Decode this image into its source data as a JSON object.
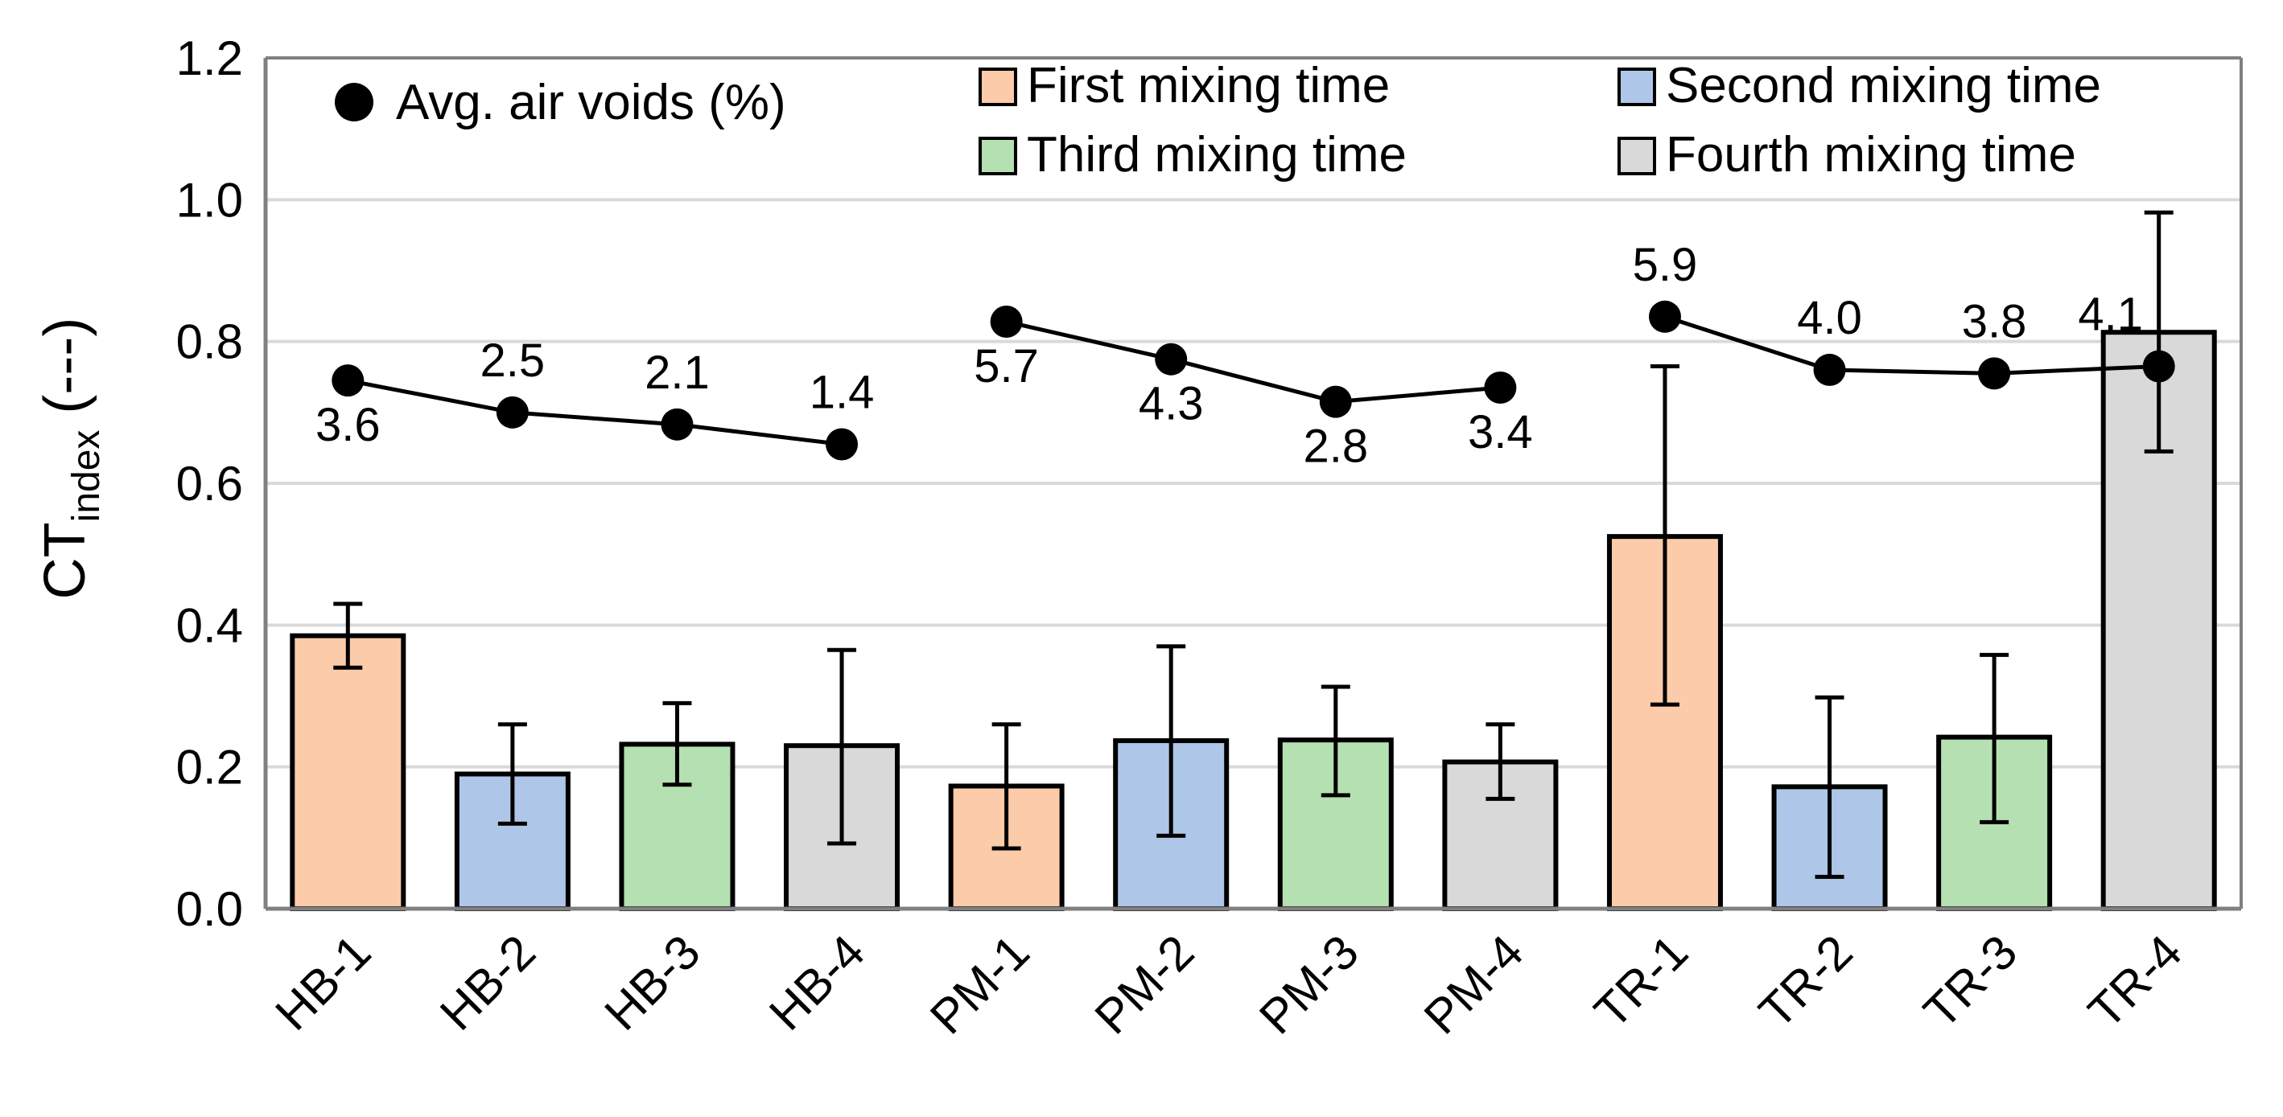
{
  "chart_data": {
    "type": "bar",
    "categories": [
      "HB-1",
      "HB-2",
      "HB-3",
      "HB-4",
      "PM-1",
      "PM-2",
      "PM-3",
      "PM-4",
      "TR-1",
      "TR-2",
      "TR-3",
      "TR-4"
    ],
    "ylabel_main": "CT",
    "ylabel_sub": "index",
    "ylabel_suffix": " (---)",
    "ylim": [
      0,
      1.2
    ],
    "yticks": [
      "0.0",
      "0.2",
      "0.4",
      "0.6",
      "0.8",
      "1.0",
      "1.2"
    ],
    "grid": true,
    "bars": [
      {
        "value": 0.385,
        "err_low": 0.34,
        "err_high": 0.43,
        "group": 0
      },
      {
        "value": 0.19,
        "err_low": 0.12,
        "err_high": 0.26,
        "group": 1
      },
      {
        "value": 0.232,
        "err_low": 0.175,
        "err_high": 0.29,
        "group": 2
      },
      {
        "value": 0.23,
        "err_low": 0.092,
        "err_high": 0.365,
        "group": 3
      },
      {
        "value": 0.173,
        "err_low": 0.085,
        "err_high": 0.26,
        "group": 0
      },
      {
        "value": 0.237,
        "err_low": 0.103,
        "err_high": 0.37,
        "group": 1
      },
      {
        "value": 0.238,
        "err_low": 0.16,
        "err_high": 0.313,
        "group": 2
      },
      {
        "value": 0.207,
        "err_low": 0.155,
        "err_high": 0.26,
        "group": 3
      },
      {
        "value": 0.525,
        "err_low": 0.288,
        "err_high": 0.765,
        "group": 0
      },
      {
        "value": 0.172,
        "err_low": 0.045,
        "err_high": 0.298,
        "group": 1
      },
      {
        "value": 0.242,
        "err_low": 0.122,
        "err_high": 0.358,
        "group": 2
      },
      {
        "value": 0.813,
        "err_low": 0.645,
        "err_high": 0.982,
        "group": 3
      }
    ],
    "line_segments": [
      [
        0,
        1,
        2,
        3
      ],
      [
        4,
        5,
        6,
        7
      ],
      [
        8,
        9,
        10,
        11
      ]
    ],
    "air_void_points": [
      {
        "y": 0.745,
        "label": "3.6",
        "pos": "below"
      },
      {
        "y": 0.7,
        "label": "2.5",
        "pos": "above"
      },
      {
        "y": 0.683,
        "label": "2.1",
        "pos": "above"
      },
      {
        "y": 0.655,
        "label": "1.4",
        "pos": "above"
      },
      {
        "y": 0.828,
        "label": "5.7",
        "pos": "below"
      },
      {
        "y": 0.775,
        "label": "4.3",
        "pos": "below"
      },
      {
        "y": 0.715,
        "label": "2.8",
        "pos": "below"
      },
      {
        "y": 0.735,
        "label": "3.4",
        "pos": "below"
      },
      {
        "y": 0.835,
        "label": "5.9",
        "pos": "above"
      },
      {
        "y": 0.76,
        "label": "4.0",
        "pos": "above"
      },
      {
        "y": 0.755,
        "label": "3.8",
        "pos": "above"
      },
      {
        "y": 0.765,
        "label": "4.1",
        "pos": "above-left"
      }
    ],
    "legend": {
      "air_voids": "Avg. air voids (%)",
      "series": [
        {
          "name": "First mixing time",
          "color": "#FCCBAA"
        },
        {
          "name": "Second mixing time",
          "color": "#AEC7E8"
        },
        {
          "name": "Third mixing time",
          "color": "#B5E0B1"
        },
        {
          "name": "Fourth mixing time",
          "color": "#D9D9D9"
        }
      ]
    },
    "colors": {
      "bar_stroke": "#000000",
      "grid": "#D9D9D9",
      "axis": "#808080",
      "marker": "#000000"
    }
  }
}
